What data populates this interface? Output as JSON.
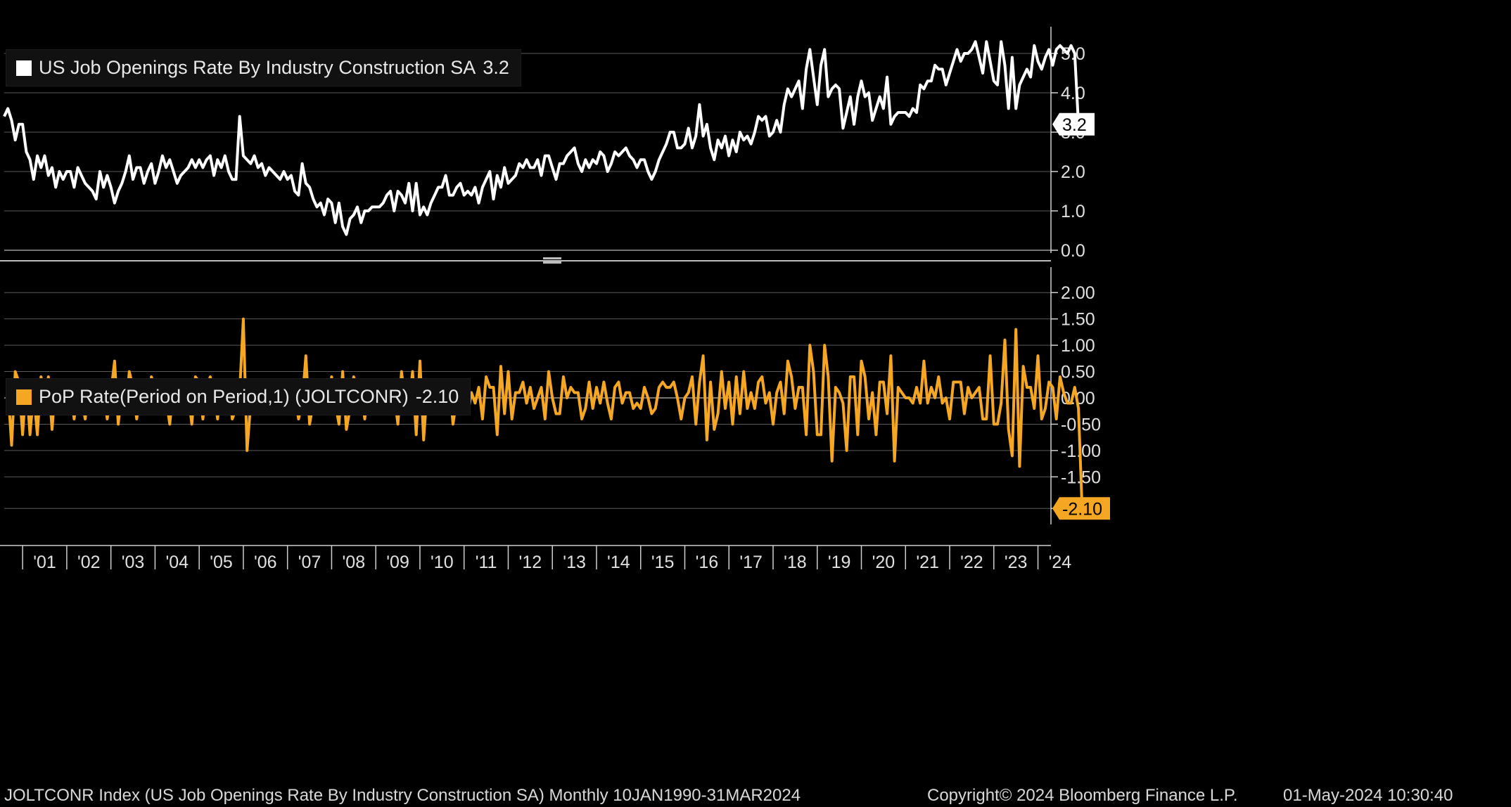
{
  "colors": {
    "background": "#000000",
    "grid": "#5a5a5a",
    "axis": "#d0d0d0",
    "series_top": "#ffffff",
    "series_bottom": "#f5a623",
    "tag_top_bg": "#ffffff",
    "tag_bottom_bg": "#f5a623"
  },
  "chart_data": [
    {
      "type": "line",
      "title": "",
      "legend": {
        "label": "US Job Openings Rate By Industry Construction SA",
        "last_value": "3.2",
        "placement": "top-left"
      },
      "series": [
        {
          "name": "US Job Openings Rate By Industry Construction SA",
          "values": [
            3.4,
            3.6,
            3.3,
            2.8,
            3.2,
            3.2,
            2.5,
            2.3,
            1.8,
            2.4,
            2.1,
            2.4,
            1.9,
            2.1,
            1.6,
            2.0,
            1.8,
            2.0,
            2.0,
            1.6,
            2.1,
            1.9,
            1.7,
            1.6,
            1.5,
            1.3,
            2.0,
            1.6,
            1.9,
            1.6,
            1.2,
            1.5,
            1.7,
            2.0,
            2.4,
            1.8,
            2.1,
            2.1,
            1.7,
            2.0,
            2.2,
            1.7,
            2.0,
            2.4,
            2.1,
            2.3,
            2.0,
            1.7,
            1.9,
            2.0,
            2.1,
            2.3,
            2.1,
            2.3,
            2.1,
            2.3,
            2.4,
            1.9,
            2.3,
            2.1,
            2.4,
            2.0,
            1.8,
            1.8,
            3.4,
            2.4,
            2.3,
            2.2,
            2.4,
            2.1,
            2.2,
            1.9,
            2.1,
            2.0,
            1.9,
            1.8,
            2.0,
            1.8,
            1.9,
            1.5,
            1.4,
            2.2,
            1.7,
            1.6,
            1.3,
            1.1,
            1.2,
            0.9,
            1.3,
            1.2,
            0.7,
            1.2,
            0.6,
            0.4,
            0.8,
            0.9,
            1.1,
            0.7,
            1.0,
            1.0,
            1.1,
            1.1,
            1.1,
            1.2,
            1.4,
            1.5,
            1.0,
            1.5,
            1.4,
            1.2,
            1.7,
            1.0,
            1.7,
            0.9,
            1.1,
            0.9,
            1.2,
            1.4,
            1.6,
            1.6,
            1.9,
            1.4,
            1.4,
            1.6,
            1.7,
            1.4,
            1.5,
            1.4,
            1.6,
            1.2,
            1.6,
            1.8,
            2.0,
            1.3,
            1.9,
            1.6,
            2.1,
            1.7,
            1.8,
            1.9,
            2.2,
            2.1,
            2.3,
            2.1,
            2.1,
            2.3,
            1.9,
            2.4,
            2.4,
            2.1,
            1.8,
            2.2,
            2.2,
            2.4,
            2.5,
            2.6,
            2.2,
            2.0,
            2.3,
            2.1,
            2.3,
            2.2,
            2.5,
            2.4,
            2.0,
            2.2,
            2.5,
            2.4,
            2.5,
            2.6,
            2.4,
            2.3,
            2.1,
            2.3,
            2.3,
            2.0,
            1.8,
            2.0,
            2.3,
            2.5,
            2.7,
            3.0,
            3.0,
            2.6,
            2.6,
            2.7,
            3.1,
            2.6,
            2.9,
            3.7,
            2.9,
            3.2,
            2.6,
            2.3,
            2.8,
            2.6,
            2.9,
            2.4,
            2.8,
            2.5,
            3.0,
            2.8,
            2.9,
            2.7,
            3.0,
            3.4,
            3.3,
            3.4,
            2.9,
            3.0,
            3.3,
            3.0,
            3.7,
            4.1,
            3.9,
            4.1,
            4.3,
            3.6,
            4.6,
            5.1,
            4.4,
            3.7,
            4.7,
            5.1,
            3.9,
            4.1,
            4.2,
            4.1,
            3.1,
            3.5,
            3.9,
            3.2,
            3.9,
            4.3,
            3.9,
            4.0,
            3.3,
            3.6,
            3.9,
            3.6,
            4.4,
            3.2,
            3.4,
            3.5,
            3.5,
            3.5,
            3.4,
            3.6,
            3.5,
            4.2,
            4.1,
            4.3,
            4.3,
            4.7,
            4.6,
            4.6,
            4.2,
            4.5,
            4.8,
            5.1,
            4.8,
            5.0,
            5.0,
            5.1,
            5.3,
            4.9,
            4.5,
            5.3,
            4.8,
            4.3,
            4.2,
            5.3,
            4.7,
            3.6,
            4.9,
            3.6,
            4.2,
            4.4,
            4.6,
            4.4,
            5.2,
            4.8,
            4.6,
            4.9,
            5.1,
            4.7,
            5.1,
            5.2,
            5.1,
            5.0,
            5.2,
            5.0,
            3.2
          ]
        }
      ],
      "x_range": [
        "2000-08",
        "2024-03"
      ],
      "x_ticks": [
        "'01",
        "'02",
        "'03",
        "'04",
        "'05",
        "'06",
        "'07",
        "'08",
        "'09",
        "'10",
        "'11",
        "'12",
        "'13",
        "'14",
        "'15",
        "'16",
        "'17",
        "'18",
        "'19",
        "'20",
        "'21",
        "'22",
        "'23",
        "'24"
      ],
      "y_ticks": [
        "0.0",
        "1.0",
        "2.0",
        "3.0",
        "4.0",
        "5.0"
      ],
      "ylim": [
        0,
        5.5
      ],
      "last_value_tag": "3.2"
    },
    {
      "type": "line",
      "title": "",
      "legend": {
        "label": "PoP Rate(Period on Period,1) (JOLTCONR)",
        "last_value": "-2.10",
        "placement": "top-left"
      },
      "series": [
        {
          "name": "PoP Rate(Period on Period,1) (JOLTCONR)",
          "values": [
            0.2,
            -0.9,
            0.5,
            0.3,
            -0.7,
            0.3,
            -0.7,
            0.1,
            -0.7,
            0.4,
            0.0,
            0.4,
            -0.6,
            0.3,
            -0.3,
            0.3,
            0.0,
            0.2,
            -0.4,
            0.2,
            0.0,
            -0.4,
            0.3,
            0.0,
            -0.1,
            -0.3,
            0.2,
            -0.4,
            0.1,
            0.7,
            -0.5,
            0.2,
            -0.3,
            0.5,
            0.2,
            -0.4,
            0.1,
            0.0,
            -0.3,
            0.4,
            0.2,
            -0.3,
            0.2,
            0.0,
            -0.5,
            0.2,
            0.2,
            0.0,
            0.3,
            0.1,
            -0.5,
            0.4,
            0.3,
            -0.4,
            0.2,
            0.4,
            0.1,
            -0.4,
            0.3,
            -0.2,
            0.3,
            -0.4,
            -0.2,
            0.1,
            1.5,
            -1.0,
            -0.1,
            -0.2,
            0.2,
            -0.3,
            0.1,
            -0.3,
            0.2,
            -0.1,
            0.1,
            -0.1,
            0.2,
            -0.2,
            0.1,
            -0.4,
            -0.1,
            0.8,
            -0.5,
            -0.1,
            -0.3,
            -0.2,
            0.1,
            -0.3,
            0.4,
            -0.1,
            -0.5,
            0.5,
            -0.6,
            -0.2,
            0.4,
            0.1,
            0.2,
            -0.4,
            0.3,
            0.0,
            0.1,
            0.0,
            0.0,
            0.1,
            0.2,
            0.1,
            -0.5,
            0.5,
            -0.1,
            -0.2,
            0.5,
            -0.7,
            0.7,
            -0.8,
            0.2,
            -0.2,
            0.3,
            0.2,
            0.2,
            0.0,
            0.3,
            -0.5,
            0.0,
            0.2,
            0.1,
            -0.3,
            0.1,
            -0.1,
            0.2,
            -0.4,
            0.4,
            0.2,
            0.2,
            -0.7,
            0.6,
            -0.3,
            0.5,
            -0.4,
            0.1,
            0.1,
            0.3,
            -0.1,
            0.2,
            -0.2,
            0.0,
            0.2,
            -0.4,
            0.5,
            0.0,
            -0.3,
            -0.3,
            0.4,
            0.0,
            0.2,
            0.1,
            0.1,
            -0.4,
            -0.2,
            0.3,
            -0.2,
            0.2,
            -0.1,
            0.3,
            -0.1,
            -0.4,
            0.2,
            0.3,
            -0.1,
            0.1,
            0.1,
            -0.2,
            -0.1,
            -0.2,
            0.2,
            0.0,
            -0.3,
            -0.2,
            0.2,
            0.3,
            0.2,
            0.2,
            0.3,
            0.0,
            -0.4,
            0.0,
            0.1,
            0.4,
            -0.5,
            0.3,
            0.8,
            -0.8,
            0.3,
            -0.6,
            -0.3,
            0.5,
            -0.2,
            0.3,
            -0.5,
            0.4,
            -0.3,
            0.5,
            -0.2,
            0.1,
            -0.2,
            0.3,
            0.4,
            -0.1,
            0.1,
            -0.5,
            0.1,
            0.3,
            -0.3,
            0.7,
            0.4,
            -0.2,
            0.2,
            0.2,
            -0.7,
            1.0,
            0.5,
            -0.7,
            -0.7,
            1.0,
            0.4,
            -1.2,
            0.2,
            0.1,
            -0.1,
            -1.0,
            0.4,
            0.4,
            -0.7,
            0.7,
            0.4,
            -0.4,
            0.1,
            -0.7,
            0.3,
            0.3,
            -0.3,
            0.8,
            -1.2,
            0.2,
            0.1,
            0.0,
            0.0,
            -0.1,
            0.2,
            -0.1,
            0.7,
            -0.1,
            0.2,
            0.0,
            0.4,
            -0.1,
            0.0,
            -0.4,
            0.3,
            0.3,
            0.3,
            -0.3,
            0.2,
            0.0,
            0.1,
            0.2,
            -0.4,
            -0.4,
            0.8,
            -0.5,
            -0.5,
            -0.1,
            1.1,
            -0.6,
            -1.1,
            1.3,
            -1.3,
            0.6,
            0.2,
            0.2,
            -0.2,
            0.8,
            -0.4,
            -0.2,
            0.3,
            0.2,
            -0.4,
            0.4,
            0.1,
            -0.1,
            -0.1,
            0.2,
            -0.2,
            -2.1
          ]
        }
      ],
      "x_range": [
        "2000-09",
        "2024-03"
      ],
      "y_ticks": [
        "-2.10",
        "-1.50",
        "-1.00",
        "-0.50",
        "0.00",
        "0.50",
        "1.00",
        "1.50",
        "2.00"
      ],
      "ylim": [
        -2.35,
        2.35
      ],
      "last_value_tag": "-2.10"
    }
  ],
  "footer": {
    "left": "JOLTCONR Index (US Job Openings Rate By Industry Construction SA)  Monthly 10JAN1990-31MAR2024",
    "center": "Copyright© 2024 Bloomberg Finance L.P.",
    "right": "01-May-2024 10:30:40"
  }
}
